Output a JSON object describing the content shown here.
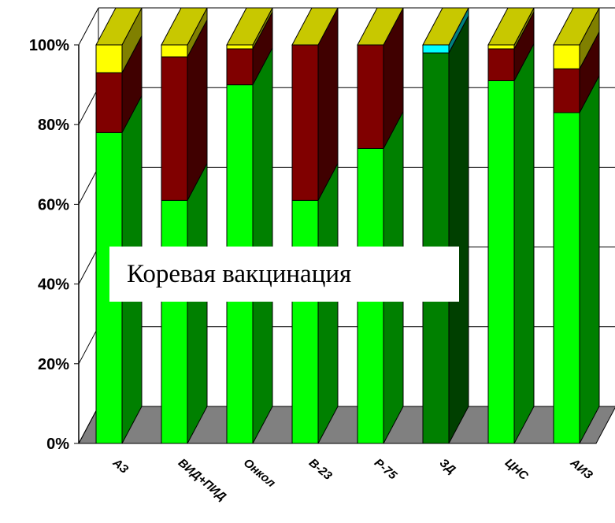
{
  "chart_data": {
    "type": "bar",
    "stacked": true,
    "percent": true,
    "three_d": true,
    "categories": [
      "АЗ",
      "ВИД+ПИД",
      "Онкол",
      "В-23",
      "Р-75",
      "ЗД",
      "ЦНС",
      "АИЗ"
    ],
    "series": [
      {
        "color": "#00ff00",
        "side_color": "#008000",
        "values": [
          78,
          61,
          90,
          61,
          74,
          0,
          91,
          83
        ]
      },
      {
        "color": "#008000",
        "side_color": "#004000",
        "values": [
          0,
          0,
          0,
          0,
          0,
          98,
          0,
          0
        ]
      },
      {
        "color": "#800000",
        "side_color": "#400000",
        "values": [
          15,
          36,
          9,
          39,
          26,
          0,
          8,
          11
        ]
      },
      {
        "color": "#00ffff",
        "side_color": "#008080",
        "values": [
          0,
          0,
          0,
          0,
          0,
          2,
          0,
          0
        ]
      },
      {
        "color": "#ffff00",
        "side_color": "#808000",
        "values": [
          7,
          3,
          1,
          0,
          0,
          0,
          1,
          6
        ]
      }
    ],
    "top_color": "#c8c800",
    "y_tick_labels": [
      "0%",
      "20%",
      "40%",
      "60%",
      "80%",
      "100%"
    ],
    "ylim": [
      0,
      100
    ],
    "grid": true,
    "floor_color": "#808080",
    "annotation": "Коревая вакцинация"
  }
}
